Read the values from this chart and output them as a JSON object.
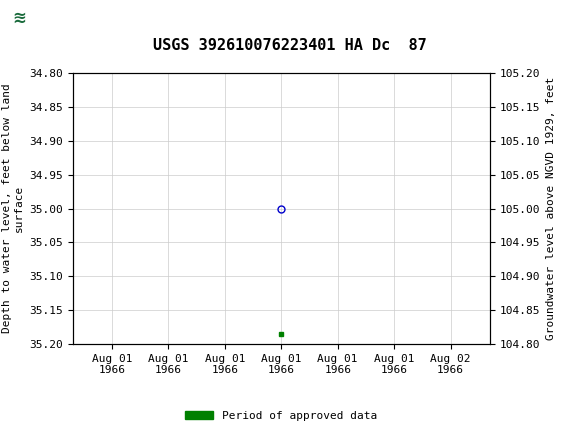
{
  "title": "USGS 392610076223401 HA Dc  87",
  "ylabel_left": "Depth to water level, feet below land\nsurface",
  "ylabel_right": "Groundwater level above NGVD 1929, feet",
  "ylim_left": [
    35.2,
    34.8
  ],
  "ylim_right": [
    104.8,
    105.2
  ],
  "yticks_left": [
    34.8,
    34.85,
    34.9,
    34.95,
    35.0,
    35.05,
    35.1,
    35.15,
    35.2
  ],
  "yticks_right": [
    104.8,
    104.85,
    104.9,
    104.95,
    105.0,
    105.05,
    105.1,
    105.15,
    105.2
  ],
  "data_point_x": 4,
  "data_point_y": 35.0,
  "green_point_x": 4,
  "green_point_y": 35.185,
  "point_color": "#0000cc",
  "green_color": "#008000",
  "background_color": "#ffffff",
  "header_color": "#1a6b3c",
  "grid_color": "#cccccc",
  "border_color": "#000000",
  "legend_label": "Period of approved data",
  "title_fontsize": 11,
  "label_fontsize": 8,
  "tick_fontsize": 8,
  "xtick_positions": [
    1,
    2,
    3,
    4,
    5,
    6,
    7
  ],
  "xtick_labels": [
    "Aug 01\n1966",
    "Aug 01\n1966",
    "Aug 01\n1966",
    "Aug 01\n1966",
    "Aug 01\n1966",
    "Aug 01\n1966",
    "Aug 02\n1966"
  ],
  "xlim": [
    0.3,
    7.7
  ]
}
